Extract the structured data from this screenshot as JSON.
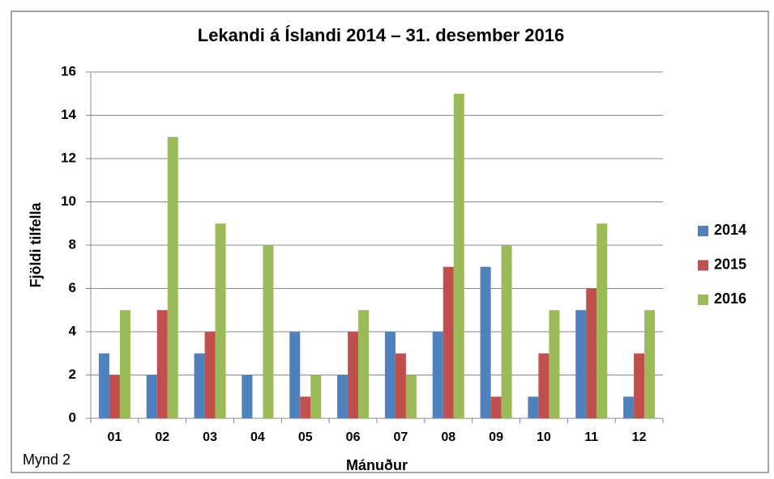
{
  "chart_data": {
    "type": "bar",
    "title": "Lekandi á Íslandi  2014 – 31. desember 2016",
    "xlabel": "Mánuður",
    "ylabel": "Fjöldi tilfella",
    "annotation": "Mynd 2",
    "categories": [
      "01",
      "02",
      "03",
      "04",
      "05",
      "06",
      "07",
      "08",
      "09",
      "10",
      "11",
      "12"
    ],
    "series": [
      {
        "name": "2014",
        "color": "#4f81bd",
        "values": [
          3,
          2,
          3,
          2,
          4,
          2,
          4,
          4,
          7,
          1,
          5,
          1
        ]
      },
      {
        "name": "2015",
        "color": "#c0504d",
        "values": [
          2,
          5,
          4,
          0,
          1,
          4,
          3,
          7,
          1,
          3,
          6,
          3
        ]
      },
      {
        "name": "2016",
        "color": "#9bbb59",
        "values": [
          5,
          13,
          9,
          8,
          2,
          5,
          2,
          15,
          8,
          5,
          9,
          5
        ]
      }
    ],
    "ylim": [
      0,
      16
    ],
    "yticks": [
      0,
      2,
      4,
      6,
      8,
      10,
      12,
      14,
      16
    ],
    "grid": true,
    "legend": "right"
  }
}
